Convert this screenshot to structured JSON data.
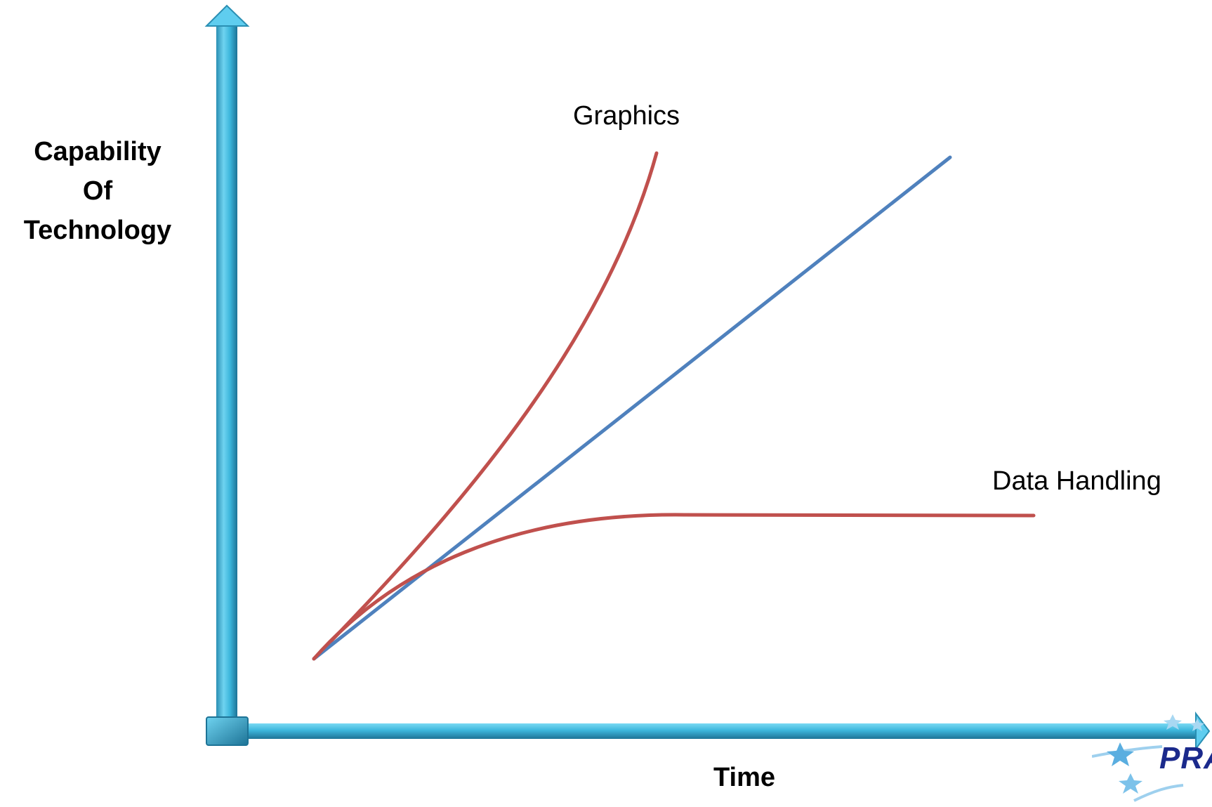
{
  "diagram": {
    "y_axis_title": "Capability\nOf\nTechnology",
    "x_axis_title": "Time",
    "curves": [
      {
        "id": "graphics",
        "label": "Graphics",
        "color": "#c0504d"
      },
      {
        "id": "baseline",
        "label": "",
        "color": "#4f81bd"
      },
      {
        "id": "data-handling",
        "label": "Data Handling",
        "color": "#c0504d"
      }
    ],
    "axis_color": "#3cb6dc"
  },
  "logo": {
    "text": "PRA",
    "icon": "star-swoosh-logo"
  }
}
